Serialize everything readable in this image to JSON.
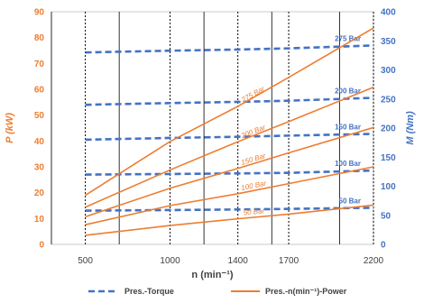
{
  "chart_data": {
    "type": "line",
    "x": [
      500,
      1000,
      1400,
      1700,
      2200
    ],
    "x_ticks": [
      "500",
      "1000",
      "1400",
      "1700",
      "2200"
    ],
    "x_range": [
      300,
      2200
    ],
    "grid_x_solid": [
      300,
      700,
      1200,
      1600,
      2000
    ],
    "xlabel": "n (min⁻¹)",
    "ylabel_left": "P (kW)",
    "ylabel_right": "M (Nm)",
    "ylim_left": [
      0,
      90
    ],
    "ylim_right": [
      0,
      400
    ],
    "yticks_left": [
      "0",
      "10",
      "20",
      "30",
      "40",
      "50",
      "60",
      "70",
      "80",
      "90"
    ],
    "yticks_right": [
      "0",
      "50",
      "100",
      "150",
      "200",
      "250",
      "300",
      "350",
      "400"
    ],
    "power_series": [
      {
        "label": "50 Bar",
        "values": [
          3.5,
          7.3,
          9.9,
          11.7,
          15.2
        ]
      },
      {
        "label": "100 Bar",
        "values": [
          7.6,
          15.0,
          19.6,
          23.5,
          30.0
        ]
      },
      {
        "label": "150 Bar",
        "values": [
          10.7,
          21.7,
          29.4,
          35.4,
          45.2
        ]
      },
      {
        "label": "200 Bar",
        "values": [
          14.4,
          28.8,
          39.7,
          47.5,
          60.8
        ]
      },
      {
        "label": "275 Bar",
        "values": [
          19.0,
          39.8,
          53.4,
          64.6,
          83.7
        ]
      }
    ],
    "torque_series": [
      {
        "label": "50 Bar",
        "values": [
          58,
          59,
          60,
          61,
          63
        ]
      },
      {
        "label": "100 Bar",
        "values": [
          120,
          121,
          122,
          123,
          127
        ]
      },
      {
        "label": "150 Bar",
        "values": [
          180,
          183,
          185,
          187,
          190
        ]
      },
      {
        "label": "200 Bar",
        "values": [
          240,
          243,
          245,
          247,
          252
        ]
      },
      {
        "label": "275 Bar",
        "values": [
          330,
          333,
          335,
          337,
          342
        ]
      }
    ],
    "legend": [
      {
        "label": "Pres.-Torque",
        "style": "dashed",
        "color": "#4472C4"
      },
      {
        "label": "Pres.-n(min⁻¹)-Power",
        "style": "solid",
        "color": "#ED7D31"
      }
    ],
    "colors": {
      "power": "#ED7D31",
      "torque": "#4472C4",
      "grid": "#000000"
    }
  }
}
